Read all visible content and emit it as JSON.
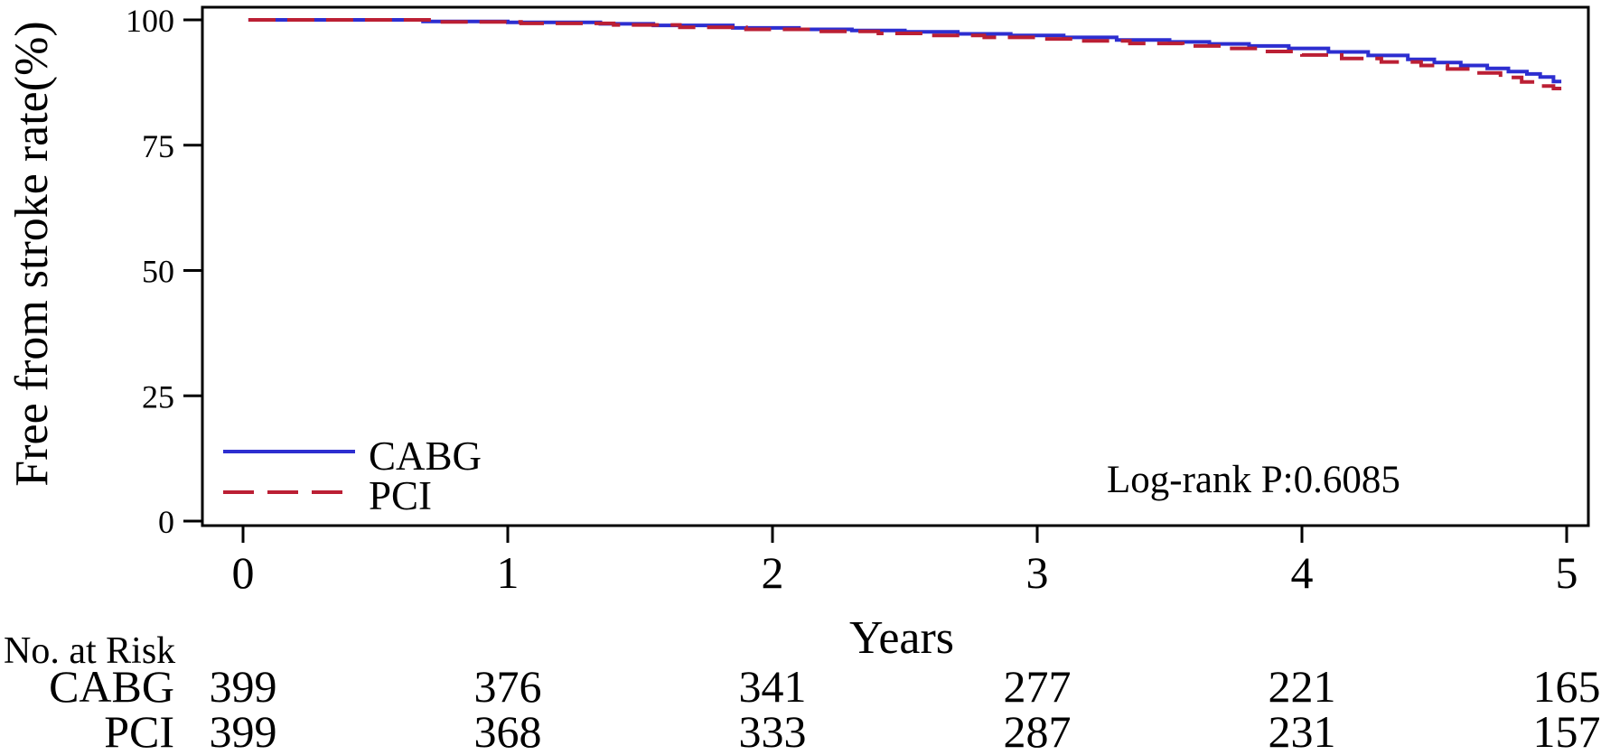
{
  "chart_data": {
    "type": "line",
    "subtype": "kaplan_meier_step",
    "title": "",
    "xlabel": "Years",
    "ylabel": "Free from stroke rate(%)",
    "xlim": [
      0,
      5
    ],
    "ylim": [
      0,
      100
    ],
    "xticks": [
      "0",
      "1",
      "2",
      "3",
      "4",
      "5"
    ],
    "yticks": [
      "100",
      "75",
      "50",
      "25",
      "0"
    ],
    "grid": false,
    "annotation": "Log-rank P:0.6085",
    "legend": {
      "position": "inside-bottom-left",
      "entries": [
        {
          "label": "CABG",
          "color": "#2d2ed0",
          "line_style": "solid"
        },
        {
          "label": "PCI",
          "color": "#bb1f34",
          "line_style": "dashed"
        }
      ]
    },
    "series": [
      {
        "name": "CABG",
        "color": "#2d2ed0",
        "line_style": "solid",
        "end_time": 4.98,
        "points": [
          [
            0.02,
            100
          ],
          [
            0.68,
            99.7
          ],
          [
            1.0,
            99.5
          ],
          [
            1.35,
            99.2
          ],
          [
            1.55,
            98.9
          ],
          [
            1.85,
            98.4
          ],
          [
            2.1,
            98.1
          ],
          [
            2.3,
            97.9
          ],
          [
            2.5,
            97.6
          ],
          [
            2.7,
            97.2
          ],
          [
            2.9,
            96.9
          ],
          [
            3.1,
            96.5
          ],
          [
            3.3,
            96.0
          ],
          [
            3.5,
            95.6
          ],
          [
            3.65,
            95.2
          ],
          [
            3.8,
            94.8
          ],
          [
            3.95,
            94.3
          ],
          [
            4.1,
            93.6
          ],
          [
            4.25,
            92.9
          ],
          [
            4.4,
            92.1
          ],
          [
            4.5,
            91.5
          ],
          [
            4.6,
            90.9
          ],
          [
            4.7,
            90.3
          ],
          [
            4.78,
            89.7
          ],
          [
            4.85,
            89.2
          ],
          [
            4.9,
            88.6
          ],
          [
            4.95,
            87.7
          ]
        ]
      },
      {
        "name": "PCI",
        "color": "#bb1f34",
        "line_style": "dashed",
        "end_time": 4.98,
        "points": [
          [
            0.02,
            100
          ],
          [
            0.72,
            99.6
          ],
          [
            1.05,
            99.3
          ],
          [
            1.4,
            99.0
          ],
          [
            1.65,
            98.5
          ],
          [
            1.9,
            98.1
          ],
          [
            2.15,
            97.7
          ],
          [
            2.4,
            97.3
          ],
          [
            2.6,
            96.9
          ],
          [
            2.8,
            96.5
          ],
          [
            3.0,
            96.2
          ],
          [
            3.15,
            95.8
          ],
          [
            3.35,
            95.3
          ],
          [
            3.55,
            94.8
          ],
          [
            3.7,
            94.3
          ],
          [
            3.85,
            93.7
          ],
          [
            4.0,
            93.0
          ],
          [
            4.15,
            92.3
          ],
          [
            4.3,
            91.6
          ],
          [
            4.45,
            90.9
          ],
          [
            4.55,
            90.2
          ],
          [
            4.65,
            89.4
          ],
          [
            4.75,
            88.5
          ],
          [
            4.83,
            87.6
          ],
          [
            4.9,
            86.8
          ],
          [
            4.95,
            86.3
          ]
        ]
      }
    ],
    "risk_table": {
      "title": "No. at Risk",
      "time_points": [
        0,
        1,
        2,
        3,
        4,
        5
      ],
      "rows": [
        {
          "label": "CABG",
          "color": "#2d2ed0",
          "values": [
            "399",
            "376",
            "341",
            "277",
            "221",
            "165"
          ]
        },
        {
          "label": "PCI",
          "color": "#bb1f34",
          "values": [
            "399",
            "368",
            "333",
            "287",
            "231",
            "157"
          ]
        }
      ]
    }
  }
}
